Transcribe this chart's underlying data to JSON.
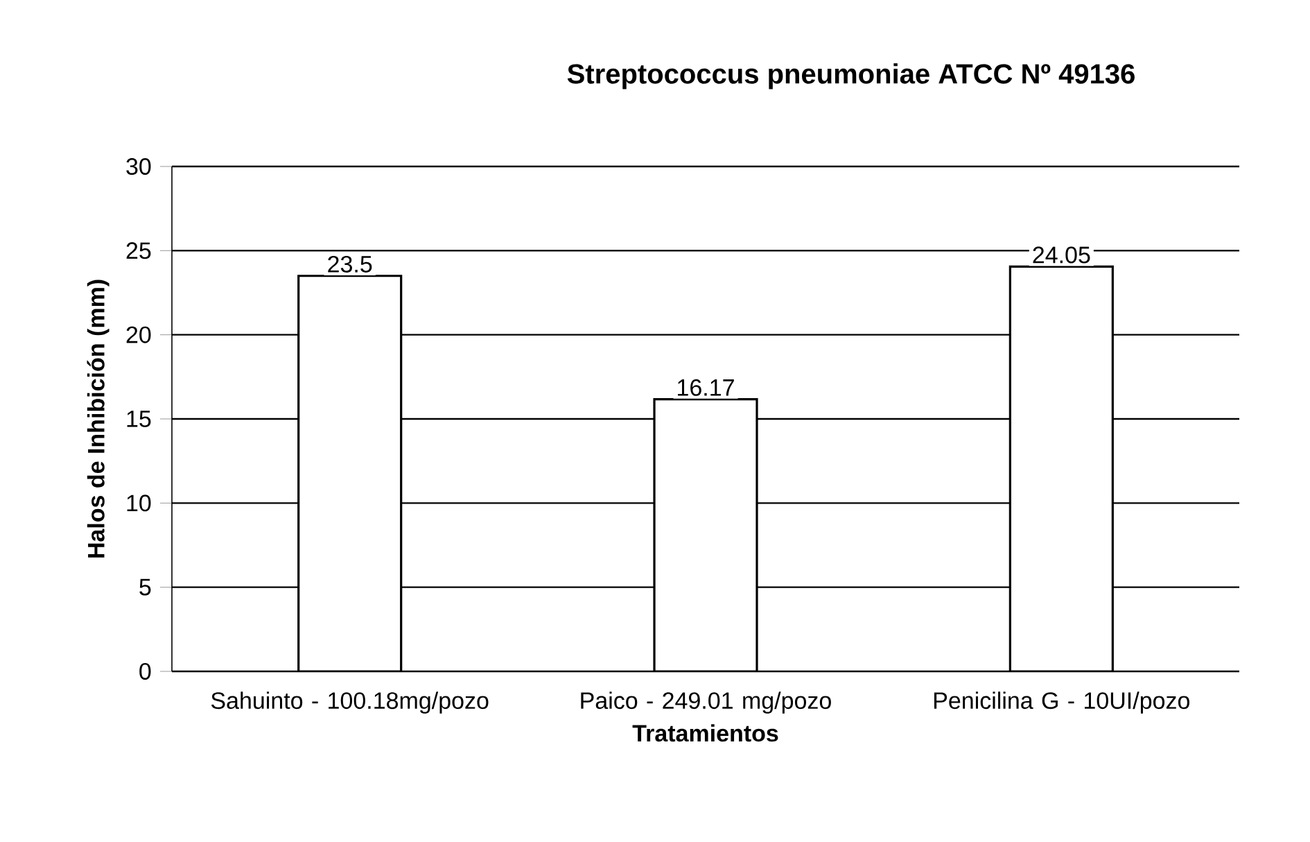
{
  "chart_data": {
    "type": "bar",
    "title": "Streptococcus pneumoniae ATCC Nº 49136",
    "xlabel": "Tratamientos",
    "ylabel": "Halos de Inhibición (mm)",
    "categories": [
      "Sahuinto - 100.18mg/pozo",
      "Paico - 249.01 mg/pozo",
      "Penicilina G - 10UI/pozo"
    ],
    "values": [
      23.5,
      16.17,
      24.05
    ],
    "value_labels": [
      "23.5",
      "16.17",
      "24.05"
    ],
    "color": "#ffffff",
    "ylim": [
      0,
      30
    ],
    "yticks": [
      0,
      5,
      10,
      15,
      20,
      25,
      30
    ],
    "grid": "y"
  }
}
